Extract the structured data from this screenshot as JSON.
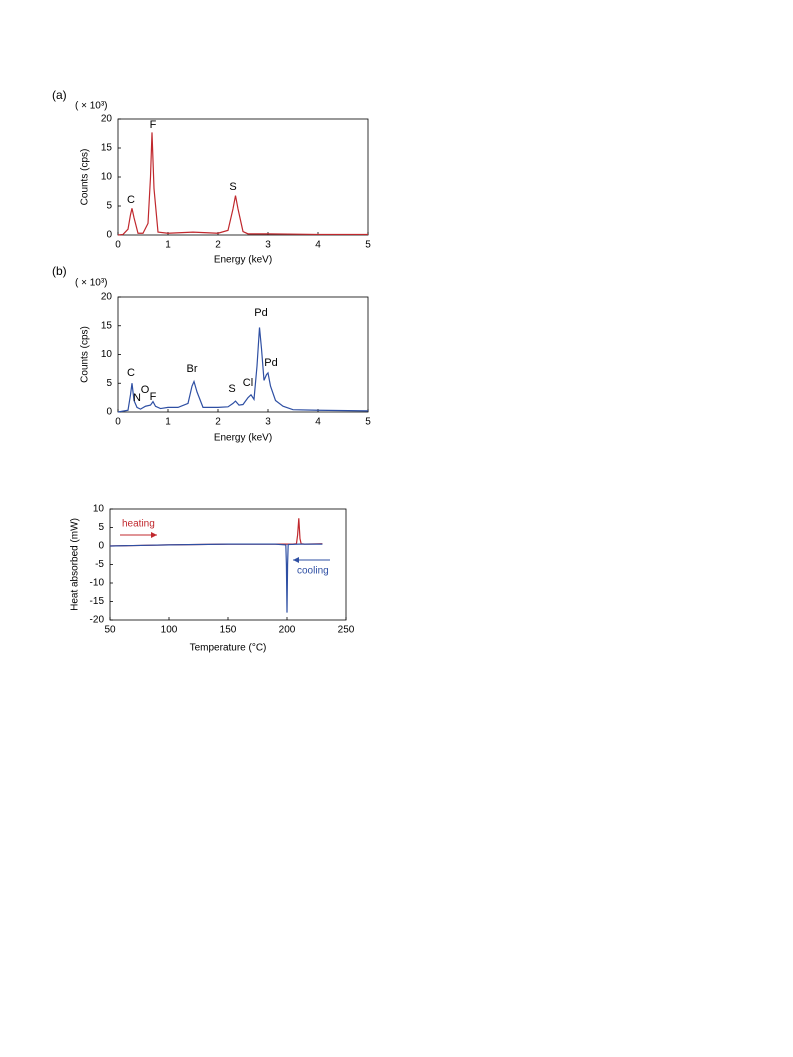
{
  "chart_data": [
    {
      "type": "line",
      "panel_label": "(a)",
      "y_multiplier": "( × 10³)",
      "xlabel": "Energy  (keV)",
      "ylabel": "Counts  (cps)",
      "xlim": [
        0,
        5
      ],
      "xticks": [
        0,
        1,
        2,
        3,
        4,
        5
      ],
      "ylim": [
        0,
        20
      ],
      "yticks": [
        0,
        5,
        10,
        15,
        20
      ],
      "x": [
        0,
        0.1,
        0.2,
        0.25,
        0.28,
        0.32,
        0.4,
        0.5,
        0.6,
        0.65,
        0.68,
        0.72,
        0.8,
        1.0,
        1.5,
        2.0,
        2.2,
        2.3,
        2.35,
        2.4,
        2.5,
        2.6,
        3,
        4,
        5
      ],
      "series": [
        {
          "color": "#c0282d",
          "values": [
            0,
            0.1,
            1,
            3.5,
            4.6,
            3,
            0.3,
            0.3,
            2,
            10,
            17.7,
            8,
            0.5,
            0.3,
            0.5,
            0.3,
            0.8,
            4.5,
            6.8,
            4.5,
            0.6,
            0.2,
            0.2,
            0.1,
            0.1
          ]
        }
      ],
      "annotations": [
        "C",
        "F",
        "S"
      ]
    },
    {
      "type": "line",
      "panel_label": "(b)",
      "y_multiplier": "( × 10³)",
      "xlabel": "Energy  (keV)",
      "ylabel": "Counts  (cps)",
      "xlim": [
        0,
        5
      ],
      "xticks": [
        0,
        1,
        2,
        3,
        4,
        5
      ],
      "ylim": [
        0,
        20
      ],
      "yticks": [
        0,
        5,
        10,
        15,
        20
      ],
      "x": [
        0,
        0.2,
        0.25,
        0.28,
        0.32,
        0.38,
        0.45,
        0.55,
        0.65,
        0.7,
        0.75,
        0.85,
        1.0,
        1.2,
        1.4,
        1.48,
        1.52,
        1.58,
        1.7,
        2.0,
        2.2,
        2.3,
        2.35,
        2.42,
        2.5,
        2.6,
        2.66,
        2.72,
        2.78,
        2.83,
        2.87,
        2.92,
        2.97,
        3.0,
        3.05,
        3.15,
        3.3,
        3.5,
        4,
        5
      ],
      "series": [
        {
          "color": "#2e4fa3",
          "values": [
            0,
            0.3,
            3,
            5,
            2,
            0.8,
            0.5,
            1,
            1.2,
            1.8,
            1,
            0.6,
            0.8,
            0.8,
            1.5,
            4.5,
            5.3,
            3.5,
            0.8,
            0.8,
            0.9,
            1.5,
            1.9,
            1.2,
            1.3,
            2.5,
            3,
            2.2,
            8,
            14.7,
            11,
            5.5,
            6.5,
            6.8,
            4.5,
            2,
            1,
            0.4,
            0.3,
            0.2
          ]
        }
      ],
      "annotations": [
        "C",
        "N",
        "O",
        "F",
        "Br",
        "S",
        "Cl",
        "Pd",
        "Pd"
      ]
    },
    {
      "type": "line",
      "xlabel": "Temperature  (°C)",
      "ylabel": "Heat   absorbed   (mW)",
      "xlim": [
        50,
        250
      ],
      "xticks": [
        50,
        100,
        150,
        200,
        250
      ],
      "ylim": [
        -20,
        10
      ],
      "yticks": [
        10,
        5,
        0,
        -5,
        -10,
        -15,
        -20
      ],
      "series": [
        {
          "name": "heating",
          "color": "#c0282d",
          "x": [
            50,
            100,
            150,
            190,
            205,
            208,
            209,
            210,
            211,
            212,
            215,
            230
          ],
          "values": [
            0,
            0.3,
            0.5,
            0.5,
            0.5,
            0.6,
            3,
            7.5,
            2,
            0.6,
            0.5,
            0.6
          ]
        },
        {
          "name": "cooling",
          "color": "#2e4fa3",
          "x": [
            230,
            210,
            201,
            200.5,
            200,
            199.5,
            199,
            190,
            150,
            100,
            50
          ],
          "values": [
            0.5,
            0.5,
            0.4,
            -5,
            -18,
            -5,
            0.3,
            0.5,
            0.5,
            0.3,
            0
          ]
        }
      ]
    }
  ]
}
